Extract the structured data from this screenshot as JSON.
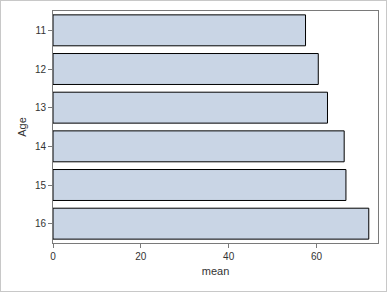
{
  "chart_data": {
    "type": "bar",
    "orientation": "horizontal",
    "categories": [
      "11",
      "12",
      "13",
      "14",
      "15",
      "16"
    ],
    "values": [
      57.5,
      60.4,
      62.5,
      66.3,
      66.7,
      71.9
    ],
    "color": "#c9d5e5",
    "x_label": "mean",
    "y_label": "Age",
    "xlim": [
      0,
      74
    ],
    "xticks": [
      0,
      20,
      40,
      60
    ],
    "grid": false
  }
}
